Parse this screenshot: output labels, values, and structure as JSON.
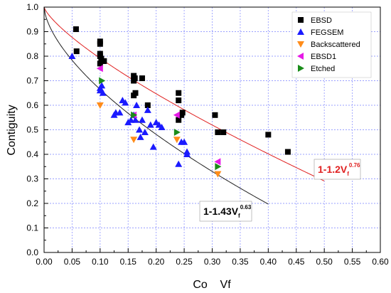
{
  "chart_data": {
    "type": "scatter",
    "xlabel": "Co    Vf",
    "ylabel": "Contiguity",
    "xlim": [
      0.0,
      0.6
    ],
    "ylim": [
      0.0,
      1.0
    ],
    "x_ticks": [
      "0.00",
      "0.05",
      "0.10",
      "0.15",
      "0.20",
      "0.25",
      "0.30",
      "0.35",
      "0.40",
      "0.45",
      "0.50",
      "0.55",
      "0.60"
    ],
    "y_ticks": [
      "0.0",
      "0.1",
      "0.2",
      "0.3",
      "0.4",
      "0.5",
      "0.6",
      "0.7",
      "0.8",
      "0.9",
      "1.0"
    ],
    "grid": true,
    "legend_position": "top-right",
    "series": [
      {
        "name": "EBSD",
        "marker": "square",
        "color": "#000000",
        "points": [
          [
            0.057,
            0.91
          ],
          [
            0.058,
            0.82
          ],
          [
            0.1,
            0.86
          ],
          [
            0.1,
            0.85
          ],
          [
            0.1,
            0.81
          ],
          [
            0.1,
            0.8
          ],
          [
            0.1,
            0.77
          ],
          [
            0.102,
            0.79
          ],
          [
            0.105,
            0.78
          ],
          [
            0.107,
            0.78
          ],
          [
            0.16,
            0.72
          ],
          [
            0.16,
            0.7
          ],
          [
            0.162,
            0.71
          ],
          [
            0.163,
            0.65
          ],
          [
            0.16,
            0.64
          ],
          [
            0.175,
            0.71
          ],
          [
            0.185,
            0.6
          ],
          [
            0.24,
            0.65
          ],
          [
            0.24,
            0.62
          ],
          [
            0.24,
            0.54
          ],
          [
            0.245,
            0.56
          ],
          [
            0.247,
            0.57
          ],
          [
            0.305,
            0.56
          ],
          [
            0.31,
            0.49
          ],
          [
            0.32,
            0.49
          ],
          [
            0.4,
            0.48
          ],
          [
            0.435,
            0.41
          ]
        ]
      },
      {
        "name": "FEGSEM",
        "marker": "triangle-up",
        "color": "#1a1aff",
        "points": [
          [
            0.05,
            0.8
          ],
          [
            0.1,
            0.67
          ],
          [
            0.1,
            0.66
          ],
          [
            0.105,
            0.65
          ],
          [
            0.103,
            0.68
          ],
          [
            0.125,
            0.56
          ],
          [
            0.128,
            0.57
          ],
          [
            0.135,
            0.57
          ],
          [
            0.14,
            0.62
          ],
          [
            0.145,
            0.61
          ],
          [
            0.15,
            0.53
          ],
          [
            0.155,
            0.54
          ],
          [
            0.16,
            0.56
          ],
          [
            0.163,
            0.54
          ],
          [
            0.165,
            0.6
          ],
          [
            0.17,
            0.5
          ],
          [
            0.172,
            0.47
          ],
          [
            0.175,
            0.54
          ],
          [
            0.18,
            0.49
          ],
          [
            0.185,
            0.58
          ],
          [
            0.19,
            0.52
          ],
          [
            0.195,
            0.43
          ],
          [
            0.2,
            0.53
          ],
          [
            0.205,
            0.52
          ],
          [
            0.21,
            0.51
          ],
          [
            0.24,
            0.36
          ],
          [
            0.245,
            0.45
          ],
          [
            0.25,
            0.45
          ],
          [
            0.255,
            0.41
          ],
          [
            0.255,
            0.4
          ]
        ]
      },
      {
        "name": "Backscattered",
        "marker": "triangle-down",
        "color": "#ff8c1a",
        "points": [
          [
            0.1,
            0.6
          ],
          [
            0.16,
            0.46
          ],
          [
            0.237,
            0.46
          ],
          [
            0.31,
            0.32
          ]
        ]
      },
      {
        "name": "EBSD1",
        "marker": "triangle-left",
        "color": "#e619e6",
        "points": [
          [
            0.1,
            0.75
          ],
          [
            0.16,
            0.56
          ],
          [
            0.237,
            0.56
          ],
          [
            0.31,
            0.37
          ]
        ]
      },
      {
        "name": "Etched",
        "marker": "triangle-right",
        "color": "#1a8c1a",
        "points": [
          [
            0.103,
            0.7
          ],
          [
            0.16,
            0.56
          ],
          [
            0.237,
            0.49
          ],
          [
            0.31,
            0.35
          ]
        ]
      }
    ],
    "fit_curves": [
      {
        "label_main": "1-1.2V",
        "label_sub": "f",
        "label_sup": "0.76",
        "a": 1.2,
        "n": 0.76,
        "color": "#e02020",
        "x_range": [
          0.0,
          0.5
        ],
        "label_color": "#e02020"
      },
      {
        "label_main": "1-1.43V",
        "label_sub": "f",
        "label_sup": "0.63",
        "a": 1.43,
        "n": 0.63,
        "color": "#202020",
        "x_range": [
          0.0,
          0.4
        ],
        "label_color": "#000000"
      }
    ]
  }
}
